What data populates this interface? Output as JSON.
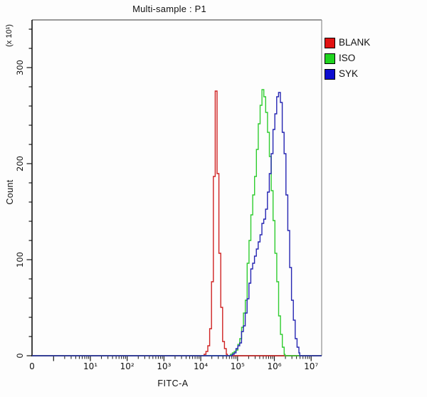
{
  "title": "Multi-sample : P1",
  "axes": {
    "x": {
      "label": "FITC-A",
      "scale": "log10",
      "tick_labels": [
        "0",
        "10¹",
        "10²",
        "10³",
        "10⁴",
        "10⁵",
        "10⁶",
        "10⁷"
      ]
    },
    "y": {
      "label": "Count",
      "unit": "(x 10¹)",
      "tick_labels": [
        "0",
        "100",
        "200",
        "300"
      ],
      "tick_values": [
        0,
        100,
        200,
        300
      ],
      "minor_step": 20,
      "max": 350
    }
  },
  "legend": {
    "items": [
      {
        "label": "BLANK",
        "color": "#e11212"
      },
      {
        "label": "ISO",
        "color": "#1fd41f"
      },
      {
        "label": "SYK",
        "color": "#0d0dcf"
      }
    ]
  },
  "chart_data": {
    "type": "line",
    "subtype": "flow-cytometry-histogram",
    "title": "Multi-sample : P1",
    "xlabel": "FITC-A",
    "ylabel": "Count",
    "y_unit": "(x 10¹)",
    "y_unit_multiplier": 10,
    "x_scale": "log10",
    "xlim": [
      0,
      10000000
    ],
    "ylim": [
      0,
      350
    ],
    "grid": false,
    "legend_position": "outside-top-right",
    "series": [
      {
        "name": "BLANK",
        "color": "#d02323",
        "points": [
          [
            11000,
            0
          ],
          [
            13500,
            3
          ],
          [
            15500,
            10
          ],
          [
            17500,
            28
          ],
          [
            19500,
            70
          ],
          [
            21000,
            130
          ],
          [
            22300,
            200
          ],
          [
            23300,
            262
          ],
          [
            24200,
            285
          ],
          [
            25500,
            262
          ],
          [
            27500,
            200
          ],
          [
            30000,
            130
          ],
          [
            33000,
            70
          ],
          [
            36500,
            30
          ],
          [
            40000,
            12
          ],
          [
            46000,
            4
          ],
          [
            53000,
            0
          ]
        ]
      },
      {
        "name": "ISO",
        "color": "#2fcc2f",
        "points": [
          [
            51000,
            0
          ],
          [
            64000,
            1
          ],
          [
            80000,
            4
          ],
          [
            91000,
            7
          ],
          [
            113000,
            18
          ],
          [
            126000,
            25
          ],
          [
            162000,
            60
          ],
          [
            180000,
            90
          ],
          [
            210000,
            130
          ],
          [
            280000,
            180
          ],
          [
            360000,
            235
          ],
          [
            430000,
            268
          ],
          [
            470000,
            281
          ],
          [
            560000,
            262
          ],
          [
            680000,
            225
          ],
          [
            800000,
            180
          ],
          [
            950000,
            130
          ],
          [
            1150000,
            80
          ],
          [
            1300000,
            45
          ],
          [
            1500000,
            18
          ],
          [
            1700000,
            5
          ],
          [
            1950000,
            0
          ]
        ]
      },
      {
        "name": "SYK",
        "color": "#2525b2",
        "points": [
          [
            64000,
            0
          ],
          [
            80000,
            3
          ],
          [
            115000,
            14
          ],
          [
            155000,
            40
          ],
          [
            220000,
            89
          ],
          [
            330000,
            115
          ],
          [
            590000,
            153
          ],
          [
            800000,
            205
          ],
          [
            1000000,
            250
          ],
          [
            1150000,
            272
          ],
          [
            1250000,
            278
          ],
          [
            1500000,
            258
          ],
          [
            1850000,
            205
          ],
          [
            2300000,
            130
          ],
          [
            2900000,
            62
          ],
          [
            3500000,
            25
          ],
          [
            4200000,
            8
          ],
          [
            4900000,
            0
          ]
        ]
      }
    ]
  }
}
